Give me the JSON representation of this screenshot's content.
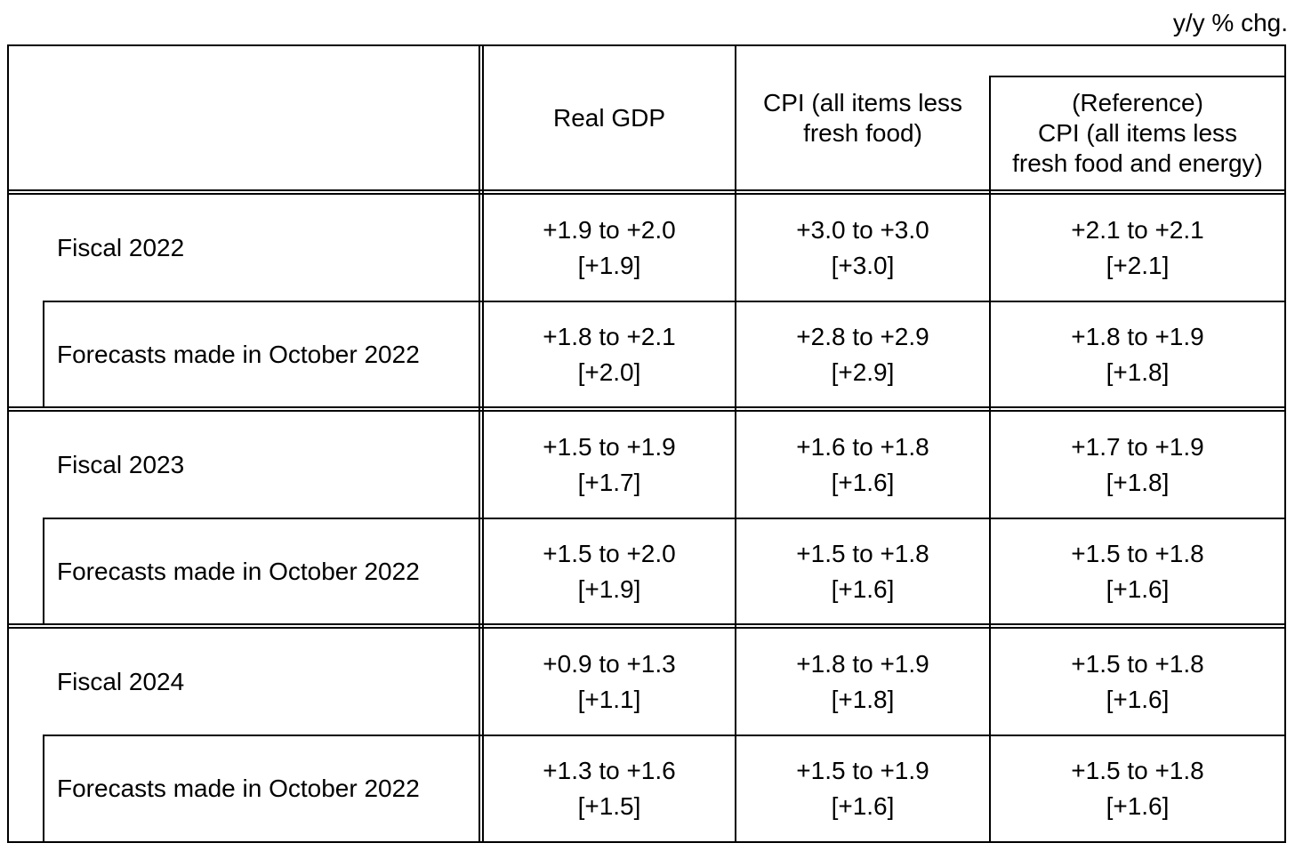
{
  "unit_note": "y/y % chg.",
  "headers": {
    "real_gdp": "Real GDP",
    "cpi_line1": "CPI (all items less",
    "cpi_line2": "fresh food)",
    "ref_line1": "(Reference)",
    "ref_line2": "CPI (all items less",
    "ref_line3": "fresh food and energy)"
  },
  "rows": [
    {
      "label": "Fiscal 2022",
      "gdp": {
        "range": "+1.9 to +2.0",
        "median": "[+1.9]"
      },
      "cpi": {
        "range": "+3.0 to +3.0",
        "median": "[+3.0]"
      },
      "ref": {
        "range": "+2.1 to +2.1",
        "median": "[+2.1]"
      }
    },
    {
      "label": "Forecasts made in October 2022",
      "gdp": {
        "range": "+1.8 to +2.1",
        "median": "[+2.0]"
      },
      "cpi": {
        "range": "+2.8 to +2.9",
        "median": "[+2.9]"
      },
      "ref": {
        "range": "+1.8 to +1.9",
        "median": "[+1.8]"
      }
    },
    {
      "label": "Fiscal 2023",
      "gdp": {
        "range": "+1.5 to +1.9",
        "median": "[+1.7]"
      },
      "cpi": {
        "range": "+1.6 to +1.8",
        "median": "[+1.6]"
      },
      "ref": {
        "range": "+1.7 to +1.9",
        "median": "[+1.8]"
      }
    },
    {
      "label": "Forecasts made in October 2022",
      "gdp": {
        "range": "+1.5 to +2.0",
        "median": "[+1.9]"
      },
      "cpi": {
        "range": "+1.5 to +1.8",
        "median": "[+1.6]"
      },
      "ref": {
        "range": "+1.5 to +1.8",
        "median": "[+1.6]"
      }
    },
    {
      "label": "Fiscal 2024",
      "gdp": {
        "range": "+0.9 to +1.3",
        "median": "[+1.1]"
      },
      "cpi": {
        "range": "+1.8 to +1.9",
        "median": "[+1.8]"
      },
      "ref": {
        "range": "+1.5 to +1.8",
        "median": "[+1.6]"
      }
    },
    {
      "label": "Forecasts made in October 2022",
      "gdp": {
        "range": "+1.3 to +1.6",
        "median": "[+1.5]"
      },
      "cpi": {
        "range": "+1.5 to +1.9",
        "median": "[+1.6]"
      },
      "ref": {
        "range": "+1.5 to +1.8",
        "median": "[+1.6]"
      }
    }
  ]
}
